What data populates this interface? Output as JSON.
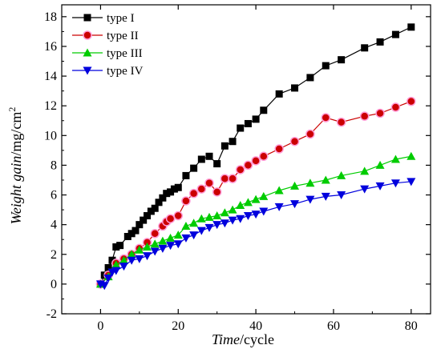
{
  "chart_data": {
    "type": "line",
    "title": "",
    "xlabel_italic": "Time",
    "xlabel_rest": "/cycle",
    "ylabel_italic": "Weight gain",
    "ylabel_rest": "/mg/cm",
    "ylabel_sup": "2",
    "xlim": [
      -10,
      85
    ],
    "ylim": [
      -2,
      18.8
    ],
    "xticks": [
      0,
      20,
      40,
      60,
      80
    ],
    "yticks": [
      -2,
      0,
      2,
      4,
      6,
      8,
      10,
      12,
      14,
      16,
      18
    ],
    "grid": false,
    "legend_position": "top-left",
    "series": [
      {
        "name": "type I",
        "color": "#000000",
        "marker": "square",
        "x": [
          0,
          1,
          2,
          3,
          4,
          5,
          7,
          8,
          9,
          10,
          11,
          12,
          13,
          14,
          15,
          16,
          17,
          18,
          19,
          20,
          22,
          24,
          26,
          28,
          30,
          32,
          34,
          36,
          38,
          40,
          42,
          46,
          50,
          54,
          58,
          62,
          68,
          72,
          76,
          80
        ],
        "y": [
          0,
          0.6,
          1.1,
          1.6,
          2.5,
          2.6,
          3.2,
          3.4,
          3.6,
          4.0,
          4.3,
          4.6,
          4.9,
          5.1,
          5.5,
          5.8,
          6.1,
          6.2,
          6.4,
          6.5,
          7.3,
          7.8,
          8.4,
          8.6,
          8.1,
          9.3,
          9.6,
          10.5,
          10.8,
          11.1,
          11.7,
          12.8,
          13.2,
          13.9,
          14.7,
          15.1,
          15.9,
          16.3,
          16.8,
          17.3
        ]
      },
      {
        "name": "type II",
        "color": "#cc0000",
        "marker": "circle",
        "x": [
          0,
          2,
          4,
          6,
          8,
          10,
          12,
          14,
          16,
          17,
          18,
          20,
          22,
          24,
          26,
          28,
          30,
          32,
          34,
          36,
          38,
          40,
          42,
          46,
          50,
          54,
          58,
          62,
          68,
          72,
          76,
          80
        ],
        "y": [
          0,
          0.6,
          1.4,
          1.7,
          2.0,
          2.4,
          2.8,
          3.4,
          3.9,
          4.2,
          4.4,
          4.6,
          5.6,
          6.1,
          6.4,
          6.8,
          6.2,
          7.1,
          7.1,
          7.7,
          8.0,
          8.3,
          8.6,
          9.1,
          9.6,
          10.1,
          11.2,
          10.9,
          11.3,
          11.5,
          11.9,
          12.3
        ]
      },
      {
        "name": "type III",
        "color": "#00cc00",
        "marker": "triangle-up",
        "x": [
          0,
          2,
          4,
          6,
          8,
          10,
          12,
          14,
          16,
          18,
          20,
          22,
          24,
          26,
          28,
          30,
          32,
          34,
          36,
          38,
          40,
          42,
          46,
          50,
          54,
          58,
          62,
          68,
          72,
          76,
          80
        ],
        "y": [
          0,
          0.5,
          1.3,
          1.6,
          2.0,
          2.3,
          2.5,
          2.7,
          2.9,
          3.1,
          3.3,
          3.9,
          4.1,
          4.4,
          4.5,
          4.6,
          4.8,
          5.0,
          5.3,
          5.5,
          5.7,
          5.9,
          6.3,
          6.6,
          6.8,
          7.0,
          7.3,
          7.6,
          8.0,
          8.4,
          8.6
        ]
      },
      {
        "name": "type IV",
        "color": "#0000dd",
        "marker": "triangle-down",
        "x": [
          0,
          1,
          2,
          3,
          4,
          6,
          8,
          10,
          12,
          14,
          16,
          18,
          20,
          22,
          24,
          26,
          28,
          30,
          32,
          34,
          36,
          38,
          40,
          42,
          46,
          50,
          54,
          58,
          62,
          68,
          72,
          76,
          80
        ],
        "y": [
          0,
          -0.1,
          0.4,
          0.8,
          0.9,
          1.2,
          1.6,
          1.7,
          1.9,
          2.2,
          2.4,
          2.6,
          2.7,
          3.1,
          3.3,
          3.6,
          3.8,
          4.0,
          4.1,
          4.3,
          4.4,
          4.6,
          4.7,
          4.9,
          5.2,
          5.4,
          5.7,
          5.9,
          6.0,
          6.4,
          6.6,
          6.8,
          6.9
        ]
      }
    ]
  }
}
